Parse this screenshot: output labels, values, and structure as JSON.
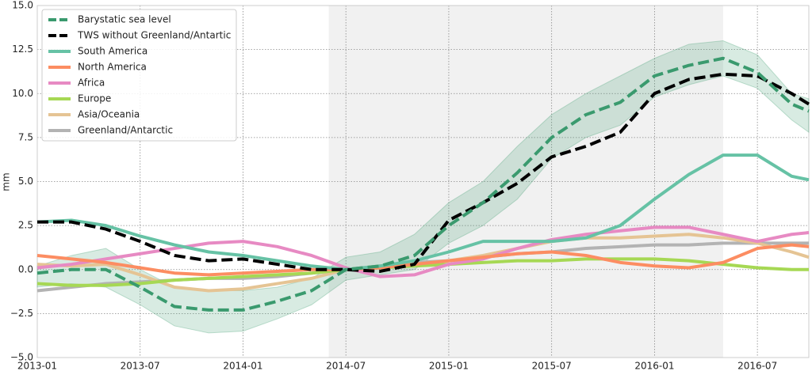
{
  "chart_data": {
    "type": "line",
    "ylabel": "mm",
    "x": [
      "2013-01",
      "2013-03",
      "2013-05",
      "2013-07",
      "2013-09",
      "2013-11",
      "2014-01",
      "2014-03",
      "2014-05",
      "2014-07",
      "2014-09",
      "2014-11",
      "2015-01",
      "2015-03",
      "2015-05",
      "2015-07",
      "2015-09",
      "2015-11",
      "2016-01",
      "2016-03",
      "2016-05",
      "2016-07",
      "2016-09",
      "2016-10"
    ],
    "xlim": [
      "2013-01",
      "2016-10"
    ],
    "xticks": [
      "2013-01",
      "2013-07",
      "2014-01",
      "2014-07",
      "2015-01",
      "2015-07",
      "2016-01",
      "2016-07"
    ],
    "ylim": [
      -5,
      15
    ],
    "yticks": [
      {
        "value": -5,
        "label": "−5.0"
      },
      {
        "value": -2.5,
        "label": "−2.5"
      },
      {
        "value": 0,
        "label": "0.0"
      },
      {
        "value": 2.5,
        "label": "2.5"
      },
      {
        "value": 5,
        "label": "5.0"
      },
      {
        "value": 7.5,
        "label": "7.5"
      },
      {
        "value": 10,
        "label": "10.0"
      },
      {
        "value": 12.5,
        "label": "12.5"
      },
      {
        "value": 15,
        "label": "15.0"
      }
    ],
    "grid": true,
    "legend": "upper left",
    "shaded_span": [
      "2014-06",
      "2016-05"
    ],
    "series": [
      {
        "name": "Barystatic sea level",
        "color": "#3a9a6e",
        "dashed": true,
        "values": [
          -0.2,
          0.0,
          0.0,
          -1.0,
          -2.1,
          -2.3,
          -2.3,
          -1.8,
          -1.2,
          0.0,
          0.2,
          0.8,
          2.5,
          3.8,
          5.5,
          7.5,
          8.8,
          9.5,
          11.0,
          11.6,
          12.0,
          11.2,
          9.4,
          9.0
        ],
        "band_lower": [
          -1.0,
          -0.8,
          -1.0,
          -2.0,
          -3.2,
          -3.6,
          -3.5,
          -2.8,
          -2.0,
          -0.6,
          -0.3,
          0.0,
          1.5,
          2.5,
          4.0,
          6.3,
          7.5,
          8.2,
          9.8,
          10.5,
          11.0,
          10.3,
          8.5,
          7.8
        ],
        "band_upper": [
          0.2,
          0.8,
          1.2,
          0.0,
          -1.0,
          -1.2,
          -1.2,
          -1.0,
          -0.5,
          0.7,
          1.0,
          2.0,
          3.8,
          5.0,
          7.0,
          8.8,
          10.0,
          11.0,
          12.0,
          12.8,
          13.0,
          12.2,
          10.0,
          9.7
        ]
      },
      {
        "name": "TWS without Greenland/Antartic",
        "color": "#000000",
        "dashed": true,
        "values": [
          2.7,
          2.7,
          2.3,
          1.6,
          0.8,
          0.5,
          0.6,
          0.3,
          0.0,
          0.0,
          -0.1,
          0.3,
          2.8,
          3.8,
          4.9,
          6.4,
          7.0,
          7.8,
          10.0,
          10.8,
          11.1,
          11.0,
          10.0,
          9.4
        ]
      },
      {
        "name": "South America",
        "color": "#66c2a5",
        "dashed": false,
        "values": [
          2.7,
          2.8,
          2.5,
          1.9,
          1.4,
          1.0,
          0.8,
          0.5,
          0.2,
          0.0,
          0.2,
          0.5,
          1.0,
          1.6,
          1.6,
          1.6,
          1.8,
          2.5,
          4.0,
          5.4,
          6.5,
          6.5,
          5.3,
          5.1
        ]
      },
      {
        "name": "North America",
        "color": "#fc8d62",
        "dashed": false,
        "values": [
          0.8,
          0.6,
          0.4,
          0.1,
          -0.2,
          -0.3,
          -0.2,
          -0.1,
          0.0,
          0.0,
          0.1,
          0.3,
          0.5,
          0.7,
          0.9,
          1.0,
          0.8,
          0.4,
          0.2,
          0.1,
          0.4,
          1.2,
          1.4,
          1.3
        ]
      },
      {
        "name": "Africa",
        "color": "#e78ac3",
        "dashed": false,
        "values": [
          0.1,
          0.3,
          0.6,
          0.9,
          1.2,
          1.5,
          1.6,
          1.3,
          0.8,
          0.1,
          -0.4,
          -0.3,
          0.3,
          0.6,
          1.2,
          1.7,
          2.0,
          2.2,
          2.4,
          2.4,
          2.0,
          1.6,
          2.0,
          2.1
        ]
      },
      {
        "name": "Europe",
        "color": "#a6d854",
        "dashed": false,
        "values": [
          -0.8,
          -0.9,
          -0.9,
          -0.8,
          -0.6,
          -0.5,
          -0.4,
          -0.3,
          -0.2,
          0.0,
          0.1,
          0.2,
          0.3,
          0.4,
          0.5,
          0.5,
          0.6,
          0.6,
          0.6,
          0.5,
          0.3,
          0.1,
          0.0,
          0.0
        ]
      },
      {
        "name": "Asia/Oceania",
        "color": "#e5c494",
        "dashed": false,
        "values": [
          0.3,
          0.2,
          0.3,
          -0.3,
          -1.0,
          -1.2,
          -1.1,
          -0.8,
          -0.5,
          0.0,
          0.2,
          0.3,
          0.5,
          0.8,
          1.2,
          1.6,
          1.8,
          1.8,
          1.9,
          2.0,
          1.8,
          1.5,
          1.0,
          0.7
        ]
      },
      {
        "name": "Greenland/Antarctic",
        "color": "#b3b3b3",
        "dashed": false,
        "values": [
          -1.2,
          -1.0,
          -0.8,
          -0.7,
          -0.6,
          -0.5,
          -0.5,
          -0.4,
          -0.2,
          0.0,
          0.2,
          0.4,
          0.5,
          0.7,
          0.9,
          1.0,
          1.2,
          1.3,
          1.4,
          1.4,
          1.5,
          1.5,
          1.5,
          1.5
        ]
      }
    ]
  }
}
